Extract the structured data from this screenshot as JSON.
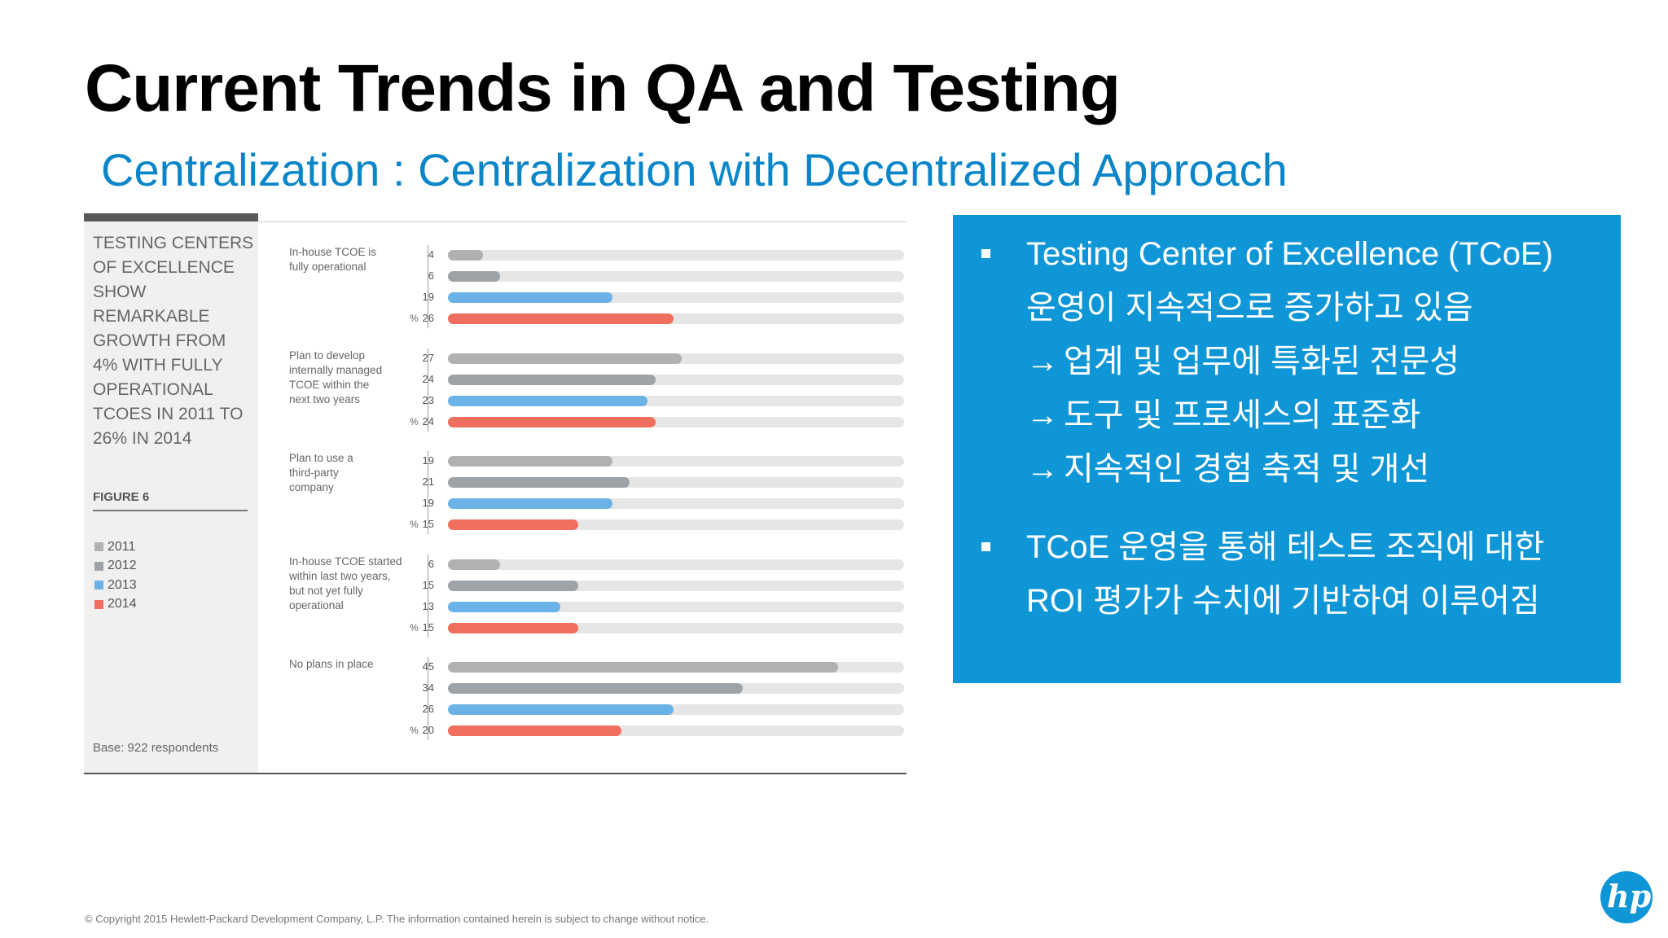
{
  "slide": {
    "title": "Current Trends in QA and Testing",
    "subtitle": "Centralization : Centralization with Decentralized Approach",
    "copyright": "© Copyright 2015 Hewlett-Packard Development Company, L.P.  The information contained herein is subject to change without notice.",
    "logo_text": "hp"
  },
  "figure": {
    "heading_lines": [
      "TESTING CENTERS",
      "OF EXCELLENCE",
      "SHOW REMARKABLE",
      "GROWTH FROM",
      "4% WITH FULLY",
      "OPERATIONAL",
      "TCOES IN 2011 TO",
      "26% IN 2014"
    ],
    "label": "FIGURE 6",
    "base": "Base: 922 respondents",
    "percent_symbol": "%"
  },
  "chart_data": {
    "type": "bar",
    "orientation": "horizontal",
    "unit": "%",
    "xlim": [
      0,
      50
    ],
    "legend": [
      {
        "name": "2011",
        "color": "#b1b1b1"
      },
      {
        "name": "2012",
        "color": "#9ea3a8"
      },
      {
        "name": "2013",
        "color": "#6bb3e6"
      },
      {
        "name": "2014",
        "color": "#f06e5e"
      }
    ],
    "groups": [
      {
        "label_lines": [
          "In-house TCOE is",
          "fully operational"
        ],
        "values": [
          4,
          6,
          19,
          26
        ]
      },
      {
        "label_lines": [
          "Plan to develop",
          "internally managed",
          "TCOE within the",
          "next two years"
        ],
        "values": [
          27,
          24,
          23,
          24
        ]
      },
      {
        "label_lines": [
          "Plan to use a",
          "third-party",
          "company"
        ],
        "values": [
          19,
          21,
          19,
          15
        ]
      },
      {
        "label_lines": [
          "In-house TCOE started",
          "within last two years,",
          "but not yet fully",
          "operational"
        ],
        "values": [
          6,
          15,
          13,
          15
        ]
      },
      {
        "label_lines": [
          "No plans in place"
        ],
        "values": [
          45,
          34,
          26,
          20
        ]
      }
    ]
  },
  "info_box": {
    "bullet1_lines": [
      "Testing Center of Excellence (TCoE)",
      "운영이 지속적으로 증가하고 있음"
    ],
    "arrow_lines": [
      "업계 및 업무에 특화된 전문성",
      "도구 및 프로세스의 표준화",
      "지속적인 경험 축적 및 개선"
    ],
    "arrow_symbol": "→",
    "bullet2_lines": [
      "TCoE 운영을 통해 테스트 조직에 대한",
      "ROI 평가가 수치에 기반하여 이루어짐"
    ],
    "background_color": "#0f96d6"
  }
}
